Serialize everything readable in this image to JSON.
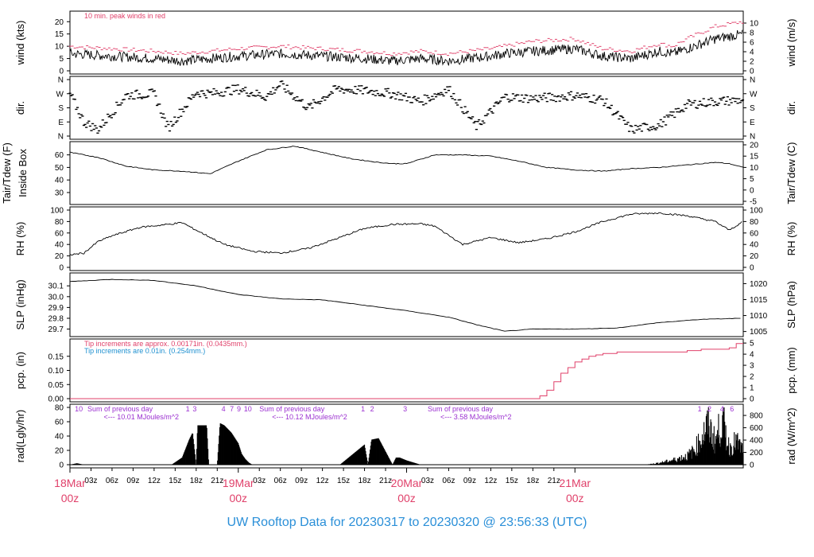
{
  "footer_title": "UW Rooftop Data for 20230317  to  20230320 @ 23:56:33  (UTC)",
  "colors": {
    "data": "#000000",
    "peak": "#e0406a",
    "pcp_line": "#e0406a",
    "note_red": "#e0406a",
    "note_blue": "#1e90d0",
    "note_purple": "#9b30d0",
    "day_label": "#e0406a"
  },
  "x_ticks": [
    "03z",
    "06z",
    "09z",
    "12z",
    "15z",
    "18z",
    "21z",
    "03z",
    "06z",
    "09z",
    "12z",
    "15z",
    "18z",
    "21z",
    "03z",
    "06z",
    "09z",
    "12z",
    "15z",
    "18z",
    "21z"
  ],
  "day_labels": [
    {
      "date": "18Mar",
      "time": "00z"
    },
    {
      "date": "19Mar",
      "time": "00z"
    },
    {
      "date": "20Mar",
      "time": "00z"
    },
    {
      "date": "21Mar",
      "time": "00z"
    }
  ],
  "chart_data": [
    {
      "type": "line",
      "panel": "wind",
      "ylabel_left": "wind (kts)",
      "ylabel_right": "wind (m/s)",
      "yticks_left": [
        "0",
        "5",
        "10",
        "15",
        "20"
      ],
      "yticks_right": [
        "0",
        "2",
        "4",
        "6",
        "8",
        "10"
      ],
      "ylim": [
        0,
        23
      ],
      "annotation": "10 min. peak winds in red",
      "x_hours": [
        0,
        6,
        12,
        16,
        24,
        30,
        36,
        42,
        46,
        50,
        54,
        60,
        62,
        66,
        72,
        76,
        80,
        84,
        86,
        88,
        92,
        96
      ],
      "series": [
        {
          "values": [
            7,
            6,
            5,
            4,
            6,
            7,
            6,
            5,
            4,
            5,
            4,
            6,
            7,
            8,
            9,
            6,
            5,
            8,
            7,
            9,
            13,
            15
          ]
        },
        {
          "values": [
            10,
            9,
            8,
            7,
            9,
            10,
            9,
            8,
            7,
            8,
            7,
            9,
            10,
            12,
            13,
            9,
            8,
            11,
            10,
            13,
            18,
            20
          ]
        }
      ]
    },
    {
      "type": "scatter",
      "panel": "direction",
      "ylabel_left": "dir.",
      "ylabel_right": "dir.",
      "yticks": [
        "N",
        "E",
        "S",
        "W",
        "N"
      ],
      "ylim": [
        0,
        360
      ],
      "x_hours": [
        0,
        2,
        4,
        8,
        12,
        14,
        18,
        20,
        24,
        28,
        30,
        34,
        38,
        42,
        46,
        50,
        54,
        58,
        62,
        66,
        70,
        72,
        76,
        80,
        84,
        88,
        92,
        96
      ],
      "values": [
        270,
        90,
        40,
        260,
        270,
        50,
        280,
        270,
        300,
        250,
        330,
        180,
        300,
        290,
        270,
        220,
        300,
        60,
        250,
        240,
        250,
        260,
        230,
        40,
        70,
        200,
        220,
        230
      ]
    },
    {
      "type": "line",
      "panel": "temperature",
      "ylabel_left": "Tair/Tdew (F)",
      "ylabel_left2": "Inside Box",
      "ylabel_right": "Tair/Tdew (C)",
      "yticks_left": [
        "30",
        "40",
        "50",
        "60"
      ],
      "yticks_right": [
        "-5",
        "0",
        "5",
        "10",
        "15",
        "20"
      ],
      "ylim": [
        23,
        68
      ],
      "x_hours": [
        0,
        4,
        8,
        12,
        16,
        20,
        24,
        28,
        32,
        36,
        40,
        44,
        46,
        48,
        52,
        56,
        60,
        64,
        68,
        72,
        76,
        80,
        84,
        88,
        92,
        94,
        96
      ],
      "values": [
        62,
        58,
        51,
        48,
        47,
        45,
        55,
        64,
        67,
        62,
        57,
        54,
        53,
        53,
        60,
        60,
        59,
        55,
        50,
        48,
        47,
        49,
        50,
        52,
        54,
        53,
        50
      ]
    },
    {
      "type": "line",
      "panel": "relative_humidity",
      "ylabel_left": "RH (%)",
      "ylabel_right": "RH (%)",
      "yticks": [
        "0",
        "20",
        "40",
        "60",
        "80",
        "100"
      ],
      "ylim": [
        0,
        100
      ],
      "x_hours": [
        0,
        2,
        4,
        6,
        10,
        14,
        16,
        18,
        22,
        26,
        30,
        34,
        38,
        42,
        46,
        50,
        52,
        56,
        60,
        64,
        68,
        72,
        76,
        80,
        84,
        88,
        92,
        94,
        96
      ],
      "values": [
        22,
        25,
        45,
        55,
        70,
        75,
        78,
        65,
        40,
        28,
        25,
        33,
        50,
        68,
        75,
        76,
        72,
        40,
        52,
        43,
        50,
        62,
        80,
        93,
        95,
        90,
        80,
        65,
        80
      ]
    },
    {
      "type": "line",
      "panel": "sea_level_pressure",
      "ylabel_left": "SLP (inHg)",
      "ylabel_right": "SLP (hPa)",
      "yticks_left": [
        "29.7",
        "29.8",
        "29.9",
        "30.0",
        "30.1"
      ],
      "yticks_right": [
        "1005",
        "1010",
        "1015",
        "1020"
      ],
      "ylim": [
        29.66,
        30.19
      ],
      "x_hours": [
        0,
        6,
        12,
        18,
        24,
        30,
        36,
        42,
        48,
        54,
        58,
        62,
        66,
        72,
        78,
        84,
        90,
        96
      ],
      "values": [
        30.14,
        30.16,
        30.15,
        30.1,
        30.02,
        29.98,
        29.97,
        29.92,
        29.87,
        29.81,
        29.74,
        29.68,
        29.7,
        29.7,
        29.71,
        29.76,
        29.79,
        29.8
      ]
    },
    {
      "type": "line",
      "panel": "precipitation",
      "ylabel_left": "pcp. (in)",
      "ylabel_right": "pcp. (mm)",
      "yticks_left": [
        "0.00",
        "0.05",
        "0.10",
        "0.15"
      ],
      "yticks_right": [
        "0",
        "1",
        "2",
        "3",
        "4",
        "5"
      ],
      "ylim": [
        0,
        0.2
      ],
      "notes": [
        "Tip increments are approx. 0.00171in. (0.0435mm.)",
        "Tip increments are 0.01in. (0.254mm.)"
      ],
      "x_hours": [
        0,
        66,
        67,
        68,
        69,
        70,
        71,
        72,
        73,
        74,
        75,
        76,
        78,
        80,
        84,
        88,
        90,
        92,
        94,
        95,
        96
      ],
      "values": [
        0,
        0,
        0.01,
        0.03,
        0.06,
        0.09,
        0.11,
        0.13,
        0.14,
        0.15,
        0.155,
        0.16,
        0.165,
        0.165,
        0.165,
        0.17,
        0.175,
        0.175,
        0.18,
        0.195,
        0.195
      ]
    },
    {
      "type": "area",
      "panel": "radiation",
      "ylabel_left": "rad(Lgly/hr)",
      "ylabel_right": "rad (W/m^2)",
      "yticks_left": [
        "0",
        "20",
        "40",
        "60",
        "80"
      ],
      "yticks_right": [
        "0",
        "200",
        "400",
        "600",
        "800"
      ],
      "ylim": [
        0,
        80
      ],
      "annotations": [
        {
          "text": "10",
          "hour": 0.7
        },
        {
          "text": "Sum of previous day",
          "hour": 2.5
        },
        {
          "text": "<--- 10.01 MJoules/m^2",
          "hour": 3
        },
        {
          "text": "1",
          "hour": 16.5
        },
        {
          "text": "3",
          "hour": 17.5
        },
        {
          "text": "4",
          "hour": 21.6
        },
        {
          "text": "7",
          "hour": 22.8
        },
        {
          "text": "9",
          "hour": 23.8
        },
        {
          "text": "10",
          "hour": 24.8
        },
        {
          "text": "Sum of previous day",
          "hour": 27
        },
        {
          "text": "<--- 10.12 MJoules/m^2",
          "hour": 27
        },
        {
          "text": "1",
          "hour": 41.5
        },
        {
          "text": "2",
          "hour": 42.8
        },
        {
          "text": "3",
          "hour": 47.5
        },
        {
          "text": "Sum of previous day",
          "hour": 51
        },
        {
          "text": "<--- 3.58 MJoules/m^2",
          "hour": 51
        },
        {
          "text": "1",
          "hour": 89.5
        },
        {
          "text": "2",
          "hour": 90.9
        },
        {
          "text": "4",
          "hour": 92.7
        },
        {
          "text": "6",
          "hour": 94.1
        }
      ],
      "x_hours": [
        0,
        1,
        2,
        14.5,
        16,
        17,
        17.5,
        18,
        18.2,
        19.5,
        19.8,
        21,
        21.4,
        22,
        23,
        24,
        24.5,
        25,
        25.5,
        26,
        38.5,
        40,
        41,
        42,
        42.5,
        43,
        44,
        46,
        46.5,
        47,
        48,
        49,
        50,
        52,
        54,
        58,
        60,
        62,
        64,
        66,
        68,
        70,
        72,
        74,
        76,
        78,
        80,
        82,
        84,
        86,
        88,
        89,
        90,
        91,
        92,
        93,
        94,
        95,
        96
      ],
      "values": [
        0,
        2,
        0,
        0,
        10,
        35,
        45,
        0,
        55,
        55,
        0,
        0,
        58,
        55,
        45,
        30,
        15,
        8,
        3,
        0,
        0,
        12,
        20,
        28,
        0,
        35,
        37,
        0,
        10,
        10,
        6,
        3,
        0,
        0,
        0,
        0,
        0,
        0,
        0,
        0,
        0,
        0,
        0,
        0,
        0,
        0,
        0,
        0,
        3,
        8,
        15,
        25,
        45,
        70,
        40,
        78,
        30,
        40,
        25
      ]
    }
  ]
}
